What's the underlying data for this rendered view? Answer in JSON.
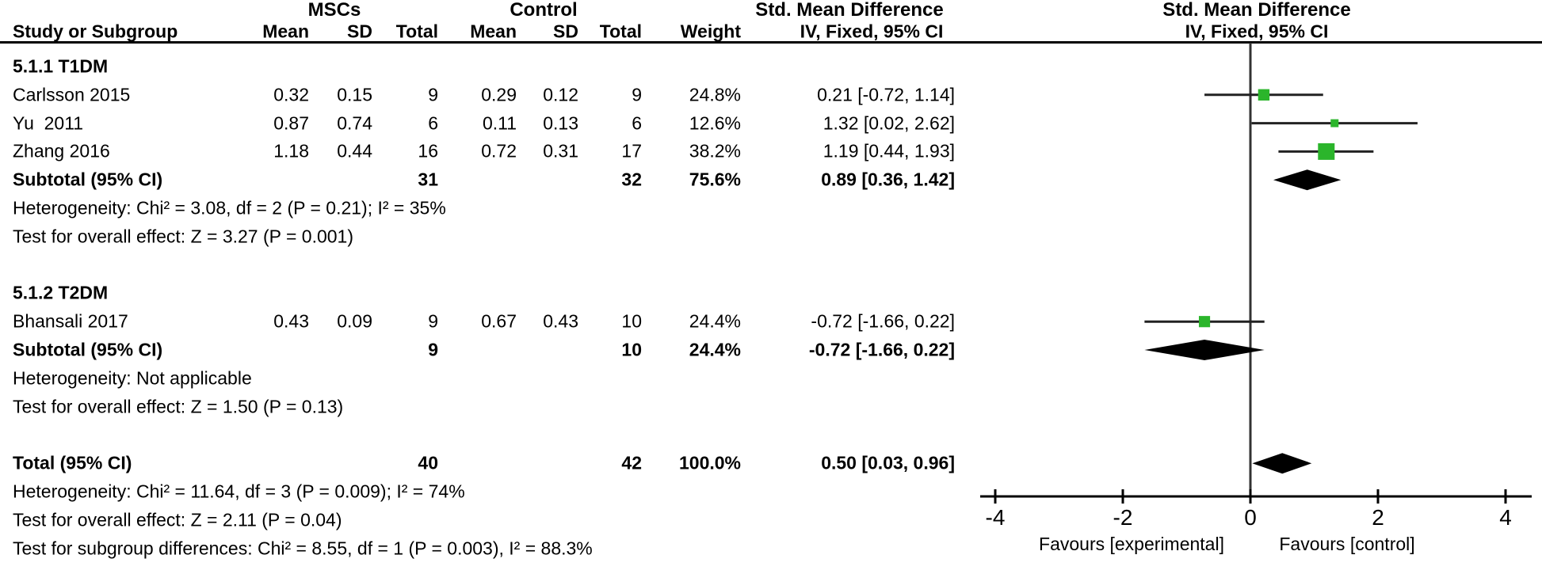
{
  "header": {
    "group1": "MSCs",
    "group2": "Control",
    "smd_left": "Std. Mean Difference",
    "smd_right": "Std. Mean Difference",
    "col_study": "Study or Subgroup",
    "col_mean1": "Mean",
    "col_sd1": "SD",
    "col_total1": "Total",
    "col_mean2": "Mean",
    "col_sd2": "SD",
    "col_total2": "Total",
    "col_weight": "Weight",
    "col_ci_left": "IV, Fixed, 95% CI",
    "col_ci_right": "IV, Fixed, 95% CI"
  },
  "chart_data": {
    "type": "forest",
    "effect_measure": "Std. Mean Difference",
    "method": "IV, Fixed, 95% CI",
    "xlim": [
      -4,
      4
    ],
    "xticks": [
      -4,
      -2,
      0,
      2,
      4
    ],
    "favours_left": "Favours [experimental]",
    "favours_right": "Favours [control]",
    "marker_color": "#2bb52b",
    "line_color": "#222222",
    "rows": [
      {
        "kind": "subgroup",
        "label": "5.1.1 T1DM"
      },
      {
        "kind": "study",
        "label": "Carlsson 2015",
        "mean1": "0.32",
        "sd1": "0.15",
        "total1": "9",
        "mean2": "0.29",
        "sd2": "0.12",
        "total2": "9",
        "weight": "24.8%",
        "ci_text": "0.21 [-0.72, 1.14]",
        "est": 0.21,
        "lo": -0.72,
        "hi": 1.14
      },
      {
        "kind": "study",
        "label": "Yu  2011",
        "mean1": "0.87",
        "sd1": "0.74",
        "total1": "6",
        "mean2": "0.11",
        "sd2": "0.13",
        "total2": "6",
        "weight": "12.6%",
        "ci_text": "1.32 [0.02, 2.62]",
        "est": 1.32,
        "lo": 0.02,
        "hi": 2.62
      },
      {
        "kind": "study",
        "label": "Zhang 2016",
        "mean1": "1.18",
        "sd1": "0.44",
        "total1": "16",
        "mean2": "0.72",
        "sd2": "0.31",
        "total2": "17",
        "weight": "38.2%",
        "ci_text": "1.19 [0.44, 1.93]",
        "est": 1.19,
        "lo": 0.44,
        "hi": 1.93
      },
      {
        "kind": "subtotal",
        "label": "Subtotal (95% CI)",
        "total1": "31",
        "total2": "32",
        "weight": "75.6%",
        "ci_text": "0.89 [0.36, 1.42]",
        "est": 0.89,
        "lo": 0.36,
        "hi": 1.42
      },
      {
        "kind": "note",
        "label": "Heterogeneity: Chi² = 3.08, df = 2 (P = 0.21); I² = 35%"
      },
      {
        "kind": "note",
        "label": "Test for overall effect: Z = 3.27 (P = 0.001)"
      },
      {
        "kind": "spacer"
      },
      {
        "kind": "subgroup",
        "label": "5.1.2 T2DM"
      },
      {
        "kind": "study",
        "label": "Bhansali 2017",
        "mean1": "0.43",
        "sd1": "0.09",
        "total1": "9",
        "mean2": "0.67",
        "sd2": "0.43",
        "total2": "10",
        "weight": "24.4%",
        "ci_text": "-0.72 [-1.66, 0.22]",
        "est": -0.72,
        "lo": -1.66,
        "hi": 0.22
      },
      {
        "kind": "subtotal",
        "label": "Subtotal (95% CI)",
        "total1": "9",
        "total2": "10",
        "weight": "24.4%",
        "ci_text": "-0.72 [-1.66, 0.22]",
        "est": -0.72,
        "lo": -1.66,
        "hi": 0.22
      },
      {
        "kind": "note",
        "label": "Heterogeneity: Not applicable"
      },
      {
        "kind": "note",
        "label": "Test for overall effect: Z = 1.50 (P = 0.13)"
      },
      {
        "kind": "spacer"
      },
      {
        "kind": "total",
        "label": "Total (95% CI)",
        "total1": "40",
        "total2": "42",
        "weight": "100.0%",
        "ci_text": "0.50 [0.03, 0.96]",
        "est": 0.5,
        "lo": 0.03,
        "hi": 0.96
      },
      {
        "kind": "note",
        "label": "Heterogeneity: Chi² = 11.64, df = 3 (P = 0.009); I² = 74%"
      },
      {
        "kind": "note",
        "label": "Test for overall effect: Z = 2.11 (P = 0.04)"
      },
      {
        "kind": "note",
        "label": "Test for subgroup differences: Chi² = 8.55, df = 1 (P = 0.003), I² = 88.3%"
      }
    ]
  }
}
